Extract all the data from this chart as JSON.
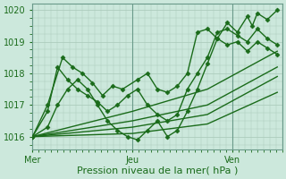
{
  "background_color": "#cce8dc",
  "plot_bg_color": "#cce8dc",
  "grid_color": "#a8c8b8",
  "line_color": "#1a6b1a",
  "marker": "D",
  "markersize": 2.5,
  "linewidth": 1.0,
  "xlabel": "Pression niveau de la mer( hPa )",
  "xlabel_color": "#1a6b1a",
  "xlabel_fontsize": 8,
  "tick_color": "#1a6b1a",
  "tick_fontsize": 7,
  "ylim": [
    1015.6,
    1020.2
  ],
  "yticks": [
    1016,
    1017,
    1018,
    1019,
    1020
  ],
  "xtick_labels": [
    "Mer",
    "Jeu",
    "Ven"
  ],
  "xtick_positions": [
    0.0,
    0.4,
    0.8
  ],
  "xvline_positions": [
    0.0,
    0.4,
    0.8
  ],
  "xlim": [
    0.0,
    1.0
  ],
  "series": [
    {
      "x": [
        0.0,
        0.06,
        0.12,
        0.16,
        0.2,
        0.24,
        0.28,
        0.32,
        0.36,
        0.42,
        0.46,
        0.5,
        0.54,
        0.58,
        0.62,
        0.66,
        0.7,
        0.74,
        0.78,
        0.82,
        0.86,
        0.88,
        0.9,
        0.94,
        0.98
      ],
      "y": [
        1016.0,
        1017.0,
        1018.5,
        1018.2,
        1018.0,
        1017.7,
        1017.3,
        1017.6,
        1017.5,
        1017.8,
        1018.0,
        1017.5,
        1017.4,
        1017.6,
        1018.0,
        1019.3,
        1019.4,
        1019.1,
        1019.6,
        1019.3,
        1019.8,
        1019.5,
        1019.9,
        1019.7,
        1020.0
      ]
    },
    {
      "x": [
        0.0,
        0.06,
        0.1,
        0.14,
        0.18,
        0.22,
        0.26,
        0.3,
        0.34,
        0.38,
        0.42,
        0.46,
        0.5,
        0.54,
        0.58,
        0.62,
        0.66,
        0.7,
        0.74,
        0.78,
        0.82,
        0.86,
        0.9,
        0.94,
        0.98
      ],
      "y": [
        1016.0,
        1016.8,
        1018.2,
        1017.8,
        1017.5,
        1017.3,
        1017.1,
        1016.8,
        1017.0,
        1017.3,
        1017.5,
        1017.0,
        1016.7,
        1016.5,
        1016.7,
        1017.5,
        1018.0,
        1018.5,
        1019.3,
        1019.4,
        1019.2,
        1019.0,
        1019.4,
        1019.1,
        1018.9
      ]
    },
    {
      "x": [
        0.0,
        0.06,
        0.1,
        0.14,
        0.18,
        0.22,
        0.26,
        0.3,
        0.34,
        0.38,
        0.42,
        0.46,
        0.5,
        0.54,
        0.58,
        0.62,
        0.66,
        0.7,
        0.74,
        0.78,
        0.82,
        0.86,
        0.9,
        0.94,
        0.98
      ],
      "y": [
        1016.0,
        1016.3,
        1017.0,
        1017.5,
        1017.8,
        1017.5,
        1017.0,
        1016.5,
        1016.2,
        1016.0,
        1015.9,
        1016.2,
        1016.5,
        1016.0,
        1016.2,
        1016.8,
        1017.5,
        1018.3,
        1019.1,
        1018.9,
        1019.0,
        1018.7,
        1019.0,
        1018.8,
        1018.6
      ]
    },
    {
      "x": [
        0.0,
        0.4,
        0.7,
        0.98
      ],
      "y": [
        1016.0,
        1016.8,
        1017.5,
        1018.7
      ]
    },
    {
      "x": [
        0.0,
        0.4,
        0.7,
        0.98
      ],
      "y": [
        1016.0,
        1016.5,
        1017.0,
        1018.2
      ]
    },
    {
      "x": [
        0.0,
        0.4,
        0.7,
        0.98
      ],
      "y": [
        1016.0,
        1016.3,
        1016.7,
        1017.9
      ]
    },
    {
      "x": [
        0.0,
        0.4,
        0.7,
        0.98
      ],
      "y": [
        1016.0,
        1016.1,
        1016.4,
        1017.4
      ]
    }
  ]
}
